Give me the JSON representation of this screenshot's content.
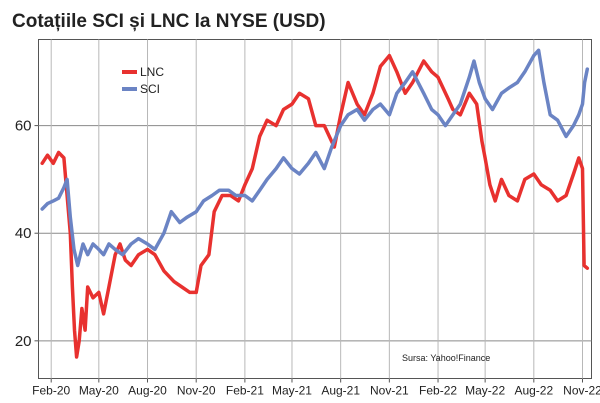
{
  "chart_data": {
    "type": "line",
    "title": "Cotațiile SCI și LNC la NYSE (USD)",
    "source": "Sursa: Yahoo!Finance",
    "legend_position": "top-left",
    "grid": true,
    "ylim": [
      13,
      76
    ],
    "yticks": [
      20,
      40,
      60
    ],
    "xlim": [
      "2020-01-08",
      "2022-11-18"
    ],
    "xticks": [
      "2020-02-01",
      "2020-05-01",
      "2020-08-01",
      "2020-11-01",
      "2021-02-01",
      "2021-05-01",
      "2021-08-01",
      "2021-11-01",
      "2022-02-01",
      "2022-05-01",
      "2022-08-01",
      "2022-11-01"
    ],
    "xtick_labels": [
      "Feb-20",
      "May-20",
      "Aug-20",
      "Nov-20",
      "Feb-21",
      "May-21",
      "Aug-21",
      "Nov-21",
      "Feb-22",
      "May-22",
      "Aug-22",
      "Nov-22"
    ],
    "series": [
      {
        "name": "LNC",
        "color": "#e8312f",
        "points": [
          [
            "2020-01-15",
            53
          ],
          [
            "2020-01-25",
            54.5
          ],
          [
            "2020-02-05",
            53
          ],
          [
            "2020-02-15",
            55
          ],
          [
            "2020-02-25",
            54
          ],
          [
            "2020-03-02",
            47
          ],
          [
            "2020-03-08",
            40
          ],
          [
            "2020-03-12",
            30
          ],
          [
            "2020-03-16",
            22
          ],
          [
            "2020-03-20",
            17
          ],
          [
            "2020-03-25",
            20
          ],
          [
            "2020-03-30",
            26
          ],
          [
            "2020-04-05",
            22
          ],
          [
            "2020-04-10",
            30
          ],
          [
            "2020-04-20",
            28
          ],
          [
            "2020-05-01",
            29
          ],
          [
            "2020-05-10",
            25
          ],
          [
            "2020-05-20",
            30
          ],
          [
            "2020-06-01",
            36
          ],
          [
            "2020-06-10",
            38
          ],
          [
            "2020-06-20",
            35
          ],
          [
            "2020-07-01",
            34
          ],
          [
            "2020-07-15",
            36
          ],
          [
            "2020-08-01",
            37
          ],
          [
            "2020-08-15",
            36
          ],
          [
            "2020-09-01",
            33
          ],
          [
            "2020-09-20",
            31
          ],
          [
            "2020-10-05",
            30
          ],
          [
            "2020-10-20",
            29
          ],
          [
            "2020-11-01",
            29
          ],
          [
            "2020-11-10",
            34
          ],
          [
            "2020-11-25",
            36
          ],
          [
            "2020-12-05",
            44
          ],
          [
            "2020-12-20",
            47
          ],
          [
            "2021-01-05",
            47
          ],
          [
            "2021-01-20",
            46
          ],
          [
            "2021-02-01",
            49
          ],
          [
            "2021-02-15",
            52
          ],
          [
            "2021-03-01",
            58
          ],
          [
            "2021-03-15",
            61
          ],
          [
            "2021-04-01",
            60
          ],
          [
            "2021-04-15",
            63
          ],
          [
            "2021-05-01",
            64
          ],
          [
            "2021-05-15",
            66
          ],
          [
            "2021-06-01",
            65
          ],
          [
            "2021-06-15",
            60
          ],
          [
            "2021-07-01",
            60
          ],
          [
            "2021-07-20",
            56
          ],
          [
            "2021-08-01",
            62
          ],
          [
            "2021-08-15",
            68
          ],
          [
            "2021-09-01",
            64
          ],
          [
            "2021-09-15",
            62
          ],
          [
            "2021-10-01",
            66
          ],
          [
            "2021-10-15",
            71
          ],
          [
            "2021-11-01",
            73
          ],
          [
            "2021-11-15",
            70
          ],
          [
            "2021-12-01",
            66
          ],
          [
            "2021-12-15",
            68
          ],
          [
            "2022-01-05",
            72
          ],
          [
            "2022-01-20",
            70
          ],
          [
            "2022-02-01",
            69
          ],
          [
            "2022-02-20",
            65
          ],
          [
            "2022-03-01",
            63
          ],
          [
            "2022-03-15",
            62
          ],
          [
            "2022-04-01",
            66
          ],
          [
            "2022-04-15",
            64
          ],
          [
            "2022-04-25",
            57
          ],
          [
            "2022-05-01",
            54
          ],
          [
            "2022-05-10",
            49
          ],
          [
            "2022-05-20",
            46
          ],
          [
            "2022-06-01",
            50
          ],
          [
            "2022-06-15",
            47
          ],
          [
            "2022-07-01",
            46
          ],
          [
            "2022-07-15",
            50
          ],
          [
            "2022-08-01",
            51
          ],
          [
            "2022-08-15",
            49
          ],
          [
            "2022-09-01",
            48
          ],
          [
            "2022-09-15",
            46
          ],
          [
            "2022-10-01",
            47
          ],
          [
            "2022-10-15",
            51
          ],
          [
            "2022-10-25",
            54
          ],
          [
            "2022-11-01",
            52
          ],
          [
            "2022-11-04",
            34
          ],
          [
            "2022-11-10",
            33.5
          ]
        ]
      },
      {
        "name": "SCI",
        "color": "#6b84c4",
        "points": [
          [
            "2020-01-15",
            44.5
          ],
          [
            "2020-01-25",
            45.5
          ],
          [
            "2020-02-05",
            46
          ],
          [
            "2020-02-15",
            46.5
          ],
          [
            "2020-02-25",
            48.5
          ],
          [
            "2020-03-02",
            50
          ],
          [
            "2020-03-08",
            43
          ],
          [
            "2020-03-15",
            37
          ],
          [
            "2020-03-22",
            34
          ],
          [
            "2020-04-01",
            38
          ],
          [
            "2020-04-10",
            36
          ],
          [
            "2020-04-20",
            38
          ],
          [
            "2020-05-01",
            37
          ],
          [
            "2020-05-10",
            36
          ],
          [
            "2020-05-20",
            38
          ],
          [
            "2020-06-01",
            37
          ],
          [
            "2020-06-15",
            36
          ],
          [
            "2020-07-01",
            38
          ],
          [
            "2020-07-15",
            39
          ],
          [
            "2020-08-01",
            38
          ],
          [
            "2020-08-15",
            37
          ],
          [
            "2020-09-01",
            40
          ],
          [
            "2020-09-15",
            44
          ],
          [
            "2020-10-01",
            42
          ],
          [
            "2020-10-15",
            43
          ],
          [
            "2020-11-01",
            44
          ],
          [
            "2020-11-15",
            46
          ],
          [
            "2020-12-01",
            47
          ],
          [
            "2020-12-15",
            48
          ],
          [
            "2021-01-01",
            48
          ],
          [
            "2021-01-15",
            47
          ],
          [
            "2021-02-01",
            47
          ],
          [
            "2021-02-15",
            46
          ],
          [
            "2021-03-01",
            48
          ],
          [
            "2021-03-15",
            50
          ],
          [
            "2021-04-01",
            52
          ],
          [
            "2021-04-15",
            54
          ],
          [
            "2021-05-01",
            52
          ],
          [
            "2021-05-15",
            51
          ],
          [
            "2021-06-01",
            53
          ],
          [
            "2021-06-15",
            55
          ],
          [
            "2021-07-01",
            52
          ],
          [
            "2021-07-15",
            56
          ],
          [
            "2021-08-01",
            60
          ],
          [
            "2021-08-15",
            62
          ],
          [
            "2021-09-01",
            63
          ],
          [
            "2021-09-15",
            61
          ],
          [
            "2021-10-01",
            63
          ],
          [
            "2021-10-15",
            64
          ],
          [
            "2021-11-01",
            62
          ],
          [
            "2021-11-15",
            66
          ],
          [
            "2021-12-01",
            68
          ],
          [
            "2021-12-15",
            70
          ],
          [
            "2022-01-05",
            66
          ],
          [
            "2022-01-20",
            63
          ],
          [
            "2022-02-01",
            62
          ],
          [
            "2022-02-15",
            60
          ],
          [
            "2022-03-01",
            62
          ],
          [
            "2022-03-15",
            64
          ],
          [
            "2022-04-01",
            69
          ],
          [
            "2022-04-10",
            72
          ],
          [
            "2022-04-20",
            68
          ],
          [
            "2022-05-01",
            65
          ],
          [
            "2022-05-15",
            63
          ],
          [
            "2022-06-01",
            66
          ],
          [
            "2022-06-15",
            67
          ],
          [
            "2022-07-01",
            68
          ],
          [
            "2022-07-15",
            70
          ],
          [
            "2022-08-01",
            73
          ],
          [
            "2022-08-10",
            74
          ],
          [
            "2022-08-20",
            68
          ],
          [
            "2022-09-01",
            62
          ],
          [
            "2022-09-15",
            61
          ],
          [
            "2022-10-01",
            58
          ],
          [
            "2022-10-15",
            60
          ],
          [
            "2022-10-25",
            62
          ],
          [
            "2022-11-01",
            64
          ],
          [
            "2022-11-05",
            68
          ],
          [
            "2022-11-10",
            70.5
          ]
        ]
      }
    ]
  }
}
